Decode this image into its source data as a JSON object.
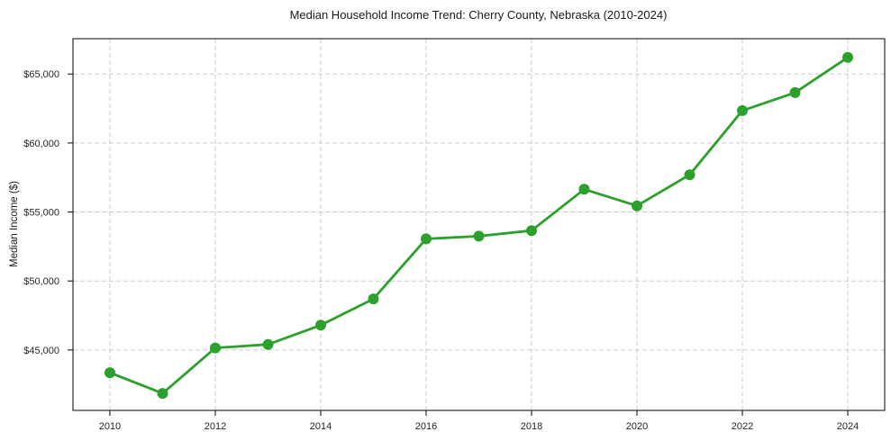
{
  "chart_data": {
    "type": "line",
    "title": "Median Household Income Trend: Cherry County, Nebraska (2010-2024)",
    "xlabel": "",
    "ylabel": "Median Income ($)",
    "x": [
      2010,
      2011,
      2012,
      2013,
      2014,
      2015,
      2016,
      2017,
      2018,
      2019,
      2020,
      2021,
      2022,
      2023,
      2024
    ],
    "series": [
      {
        "name": "Median Household Income",
        "values": [
          43350,
          41850,
          45150,
          45400,
          46800,
          48700,
          53050,
          53250,
          53650,
          56650,
          55450,
          57700,
          62350,
          63650,
          66200
        ]
      }
    ],
    "xticks": [
      2010,
      2012,
      2014,
      2016,
      2018,
      2020,
      2022,
      2024
    ],
    "xtick_labels": [
      "2010",
      "2012",
      "2014",
      "2016",
      "2018",
      "2020",
      "2022",
      "2024"
    ],
    "yticks": [
      45000,
      50000,
      55000,
      60000,
      65000
    ],
    "ytick_labels": [
      "$45,000",
      "$50,000",
      "$55,000",
      "$60,000",
      "$65,000"
    ],
    "xlim": [
      2009.3,
      2024.7
    ],
    "ylim": [
      40620,
      67560
    ],
    "grid": true,
    "grid_style": "dashed",
    "legend_position": "none",
    "colors": {
      "line": "#2ca02c",
      "marker": "#2ca02c",
      "grid": "#cccccc",
      "spine": "#1a1a1a",
      "background": "#ffffff"
    }
  }
}
